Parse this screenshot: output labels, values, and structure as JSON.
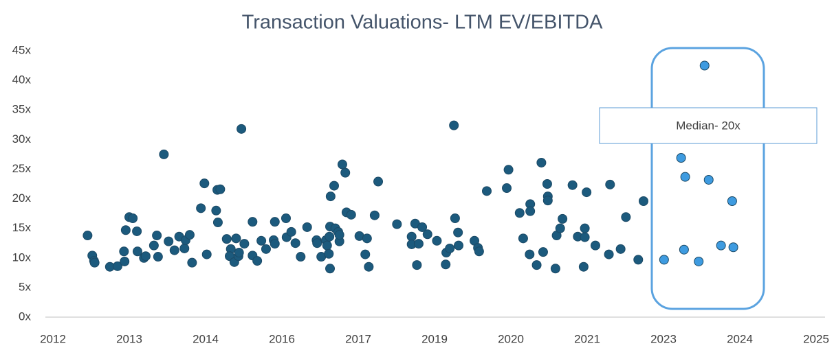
{
  "chart_data": {
    "type": "scatter",
    "title": "Transaction Valuations- LTM EV/EBITDA",
    "annotation": "Median- 20x",
    "xlim": [
      2012.0,
      2025.0
    ],
    "xticks": [
      {
        "value": 2012.0,
        "label": "2012"
      },
      {
        "value": 2013.3,
        "label": "2013"
      },
      {
        "value": 2014.6,
        "label": "2014"
      },
      {
        "value": 2015.9,
        "label": "2016"
      },
      {
        "value": 2017.2,
        "label": "2017"
      },
      {
        "value": 2018.5,
        "label": "2019"
      },
      {
        "value": 2019.8,
        "label": "2020"
      },
      {
        "value": 2021.1,
        "label": "2021"
      },
      {
        "value": 2022.4,
        "label": "2023"
      },
      {
        "value": 2023.7,
        "label": "2024"
      },
      {
        "value": 2025.0,
        "label": "2025"
      }
    ],
    "ylim": [
      0,
      45
    ],
    "yticks": [
      {
        "value": 0,
        "label": "0x"
      },
      {
        "value": 5,
        "label": "5x"
      },
      {
        "value": 10,
        "label": "10x"
      },
      {
        "value": 15,
        "label": "15x"
      },
      {
        "value": 20,
        "label": "20x"
      },
      {
        "value": 25,
        "label": "25x"
      },
      {
        "value": 30,
        "label": "30x"
      },
      {
        "value": 35,
        "label": "35x"
      },
      {
        "value": 40,
        "label": "40x"
      },
      {
        "value": 45,
        "label": "45x"
      }
    ],
    "grid": false,
    "series": [
      {
        "color": "#1c5a7d",
        "x": [
          2012.59,
          2012.67,
          2012.7,
          2012.71,
          2012.97,
          2013.1,
          2013.21,
          2013.22,
          2013.24,
          2013.3,
          2013.36,
          2013.43,
          2013.44,
          2013.55,
          2013.58,
          2013.72,
          2013.77,
          2013.79,
          2013.89,
          2013.97,
          2014.07,
          2014.15,
          2014.24,
          2014.26,
          2014.33,
          2014.37,
          2014.52,
          2014.58,
          2014.62,
          2014.78,
          2014.8,
          2014.85,
          2014.81,
          2014.96,
          2015.03,
          2015.01,
          2015.12,
          2015.09,
          2015.16,
          2015.17,
          2015.21,
          2015.26,
          2015.4,
          2015.4,
          2015.48,
          2015.55,
          2015.63,
          2015.76,
          2015.78,
          2015.78,
          2015.97,
          2015.98,
          2016.06,
          2016.13,
          2016.22,
          2016.33,
          2016.49,
          2016.5,
          2016.57,
          2016.65,
          2016.67,
          2016.7,
          2016.71,
          2016.72,
          2016.73,
          2016.72,
          2016.79,
          2016.81,
          2016.86,
          2016.88,
          2016.88,
          2016.93,
          2016.98,
          2017.0,
          2017.08,
          2017.22,
          2017.32,
          2017.35,
          2017.38,
          2017.48,
          2017.54,
          2017.86,
          2018.11,
          2018.11,
          2018.17,
          2018.2,
          2018.23,
          2018.29,
          2018.38,
          2018.54,
          2018.69,
          2018.7,
          2018.76,
          2018.83,
          2018.85,
          2018.9,
          2018.91,
          2019.18,
          2019.24,
          2019.26,
          2019.39,
          2019.73,
          2019.76,
          2019.95,
          2020.01,
          2020.12,
          2020.13,
          2020.13,
          2020.24,
          2020.32,
          2020.35,
          2020.42,
          2020.43,
          2020.43,
          2020.56,
          2020.58,
          2020.64,
          2020.68,
          2020.85,
          2020.94,
          2021.04,
          2021.06,
          2021.06,
          2021.09,
          2021.24,
          2021.47,
          2021.49,
          2021.67,
          2021.76,
          2021.97,
          2022.06
        ],
        "values": [
          13.8,
          10.4,
          9.5,
          9.2,
          8.5,
          8.6,
          11.1,
          9.4,
          14.7,
          16.9,
          16.7,
          14.5,
          11.1,
          10.0,
          10.3,
          12.1,
          13.8,
          10.2,
          27.5,
          12.8,
          11.3,
          13.6,
          11.6,
          13.0,
          13.9,
          9.2,
          18.4,
          22.6,
          10.6,
          18.0,
          21.5,
          21.6,
          16.0,
          13.2,
          11.5,
          10.3,
          13.3,
          9.3,
          10.3,
          10.9,
          31.8,
          12.4,
          16.1,
          10.4,
          9.5,
          12.9,
          11.5,
          13.0,
          12.4,
          16.1,
          16.7,
          13.5,
          14.4,
          12.5,
          10.2,
          15.2,
          13.0,
          12.5,
          10.2,
          13.0,
          12.1,
          10.7,
          13.6,
          8.2,
          20.4,
          15.3,
          22.2,
          15.0,
          14.4,
          12.8,
          13.9,
          25.8,
          24.4,
          17.7,
          17.3,
          13.7,
          10.6,
          13.3,
          8.5,
          17.2,
          22.9,
          15.7,
          13.6,
          12.3,
          15.8,
          8.8,
          12.4,
          15.2,
          14.0,
          12.9,
          8.9,
          10.9,
          11.6,
          32.4,
          16.7,
          14.3,
          12.1,
          12.9,
          11.7,
          11.1,
          21.3,
          21.8,
          24.9,
          17.6,
          13.3,
          10.6,
          19.1,
          17.9,
          8.8,
          26.1,
          11.0,
          22.5,
          20.4,
          19.7,
          8.2,
          13.8,
          15.0,
          16.6,
          22.3,
          13.6,
          8.5,
          13.5,
          15.0,
          21.1,
          12.1,
          10.6,
          22.4,
          11.5,
          16.9,
          9.7,
          19.6
        ]
      },
      {
        "color": "#3e9be0",
        "x": [
          2022.41,
          2022.7,
          2022.75,
          2022.77,
          2023.0,
          2023.1,
          2023.17,
          2023.38,
          2023.57,
          2023.59
        ],
        "values": [
          9.7,
          26.9,
          11.4,
          23.7,
          9.4,
          42.5,
          23.2,
          12.1,
          19.6,
          11.8
        ]
      }
    ]
  }
}
